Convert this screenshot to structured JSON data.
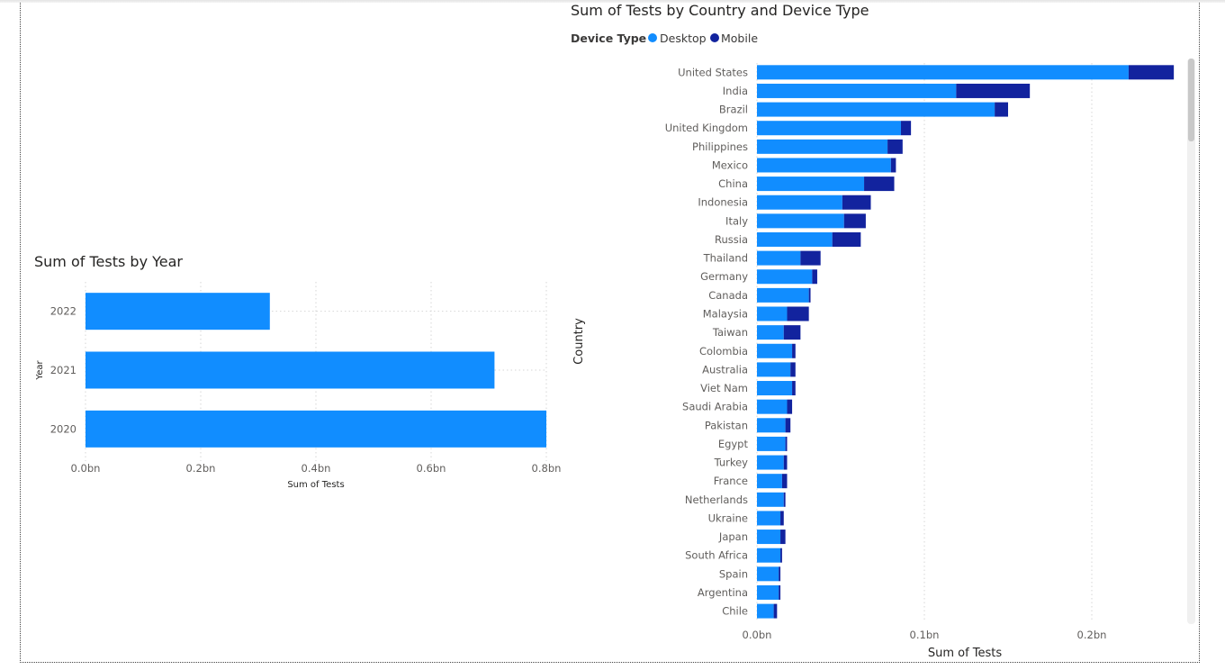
{
  "chart_data": [
    {
      "type": "bar",
      "title": "Sum of Tests by Year",
      "xlabel": "Sum of Tests",
      "ylabel": "Year",
      "categories": [
        "2022",
        "2021",
        "2020"
      ],
      "values": [
        0.32,
        0.71,
        0.8
      ],
      "value_unit": "bn",
      "xlim": [
        0,
        0.8
      ],
      "xticks": [
        "0.0bn",
        "0.2bn",
        "0.4bn",
        "0.6bn",
        "0.8bn"
      ],
      "grid": true,
      "color": "#118DFF"
    },
    {
      "type": "bar",
      "stacked": true,
      "title": "Sum of Tests by Country and Device Type",
      "legend_title": "Device Type",
      "legend_position": "top-left",
      "xlabel": "Sum of Tests",
      "ylabel": "Country",
      "value_unit": "bn",
      "xlim": [
        0,
        0.25
      ],
      "xticks": [
        "0.0bn",
        "0.1bn",
        "0.2bn"
      ],
      "grid": true,
      "categories": [
        "United States",
        "India",
        "Brazil",
        "United Kingdom",
        "Philippines",
        "Mexico",
        "China",
        "Indonesia",
        "Italy",
        "Russia",
        "Thailand",
        "Germany",
        "Canada",
        "Malaysia",
        "Taiwan",
        "Colombia",
        "Australia",
        "Viet Nam",
        "Saudi Arabia",
        "Pakistan",
        "Egypt",
        "Turkey",
        "France",
        "Netherlands",
        "Ukraine",
        "Japan",
        "South Africa",
        "Spain",
        "Argentina",
        "Chile"
      ],
      "series": [
        {
          "name": "Desktop",
          "color": "#118DFF",
          "values": [
            0.222,
            0.119,
            0.142,
            0.086,
            0.078,
            0.08,
            0.064,
            0.051,
            0.052,
            0.045,
            0.026,
            0.033,
            0.031,
            0.018,
            0.016,
            0.021,
            0.02,
            0.021,
            0.018,
            0.017,
            0.017,
            0.016,
            0.015,
            0.016,
            0.014,
            0.014,
            0.014,
            0.013,
            0.013,
            0.01
          ]
        },
        {
          "name": "Mobile",
          "color": "#12239E",
          "values": [
            0.027,
            0.044,
            0.008,
            0.006,
            0.009,
            0.003,
            0.018,
            0.017,
            0.013,
            0.017,
            0.012,
            0.003,
            0.001,
            0.013,
            0.01,
            0.002,
            0.003,
            0.002,
            0.003,
            0.003,
            0.001,
            0.002,
            0.003,
            0.001,
            0.002,
            0.003,
            0.001,
            0.001,
            0.001,
            0.002
          ]
        }
      ]
    }
  ]
}
